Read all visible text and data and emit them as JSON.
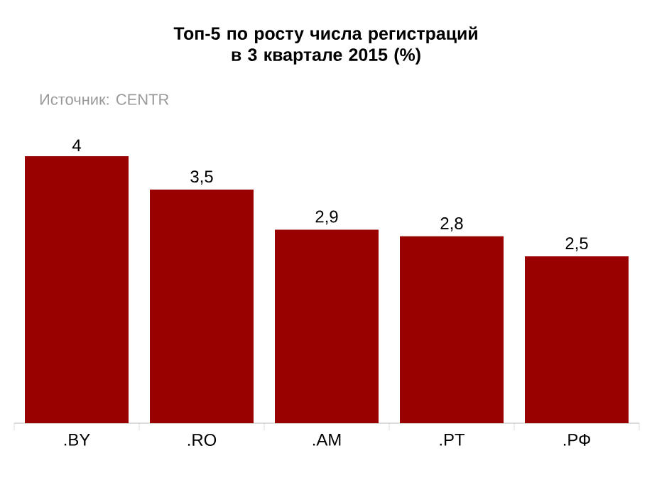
{
  "chart_data": {
    "type": "bar",
    "title": "Топ-5 по росту числа регистраций в 3 квартале 2015 (%)",
    "annotations": [
      "Источник: CENTR"
    ],
    "categories": [
      ".BY",
      ".RO",
      ".AM",
      ".PT",
      ".РФ"
    ],
    "values": [
      4,
      3.5,
      2.9,
      2.8,
      2.5
    ],
    "value_labels": [
      "4",
      "3,5",
      "2,9",
      "2,8",
      "2,5"
    ],
    "color": "#990000"
  }
}
